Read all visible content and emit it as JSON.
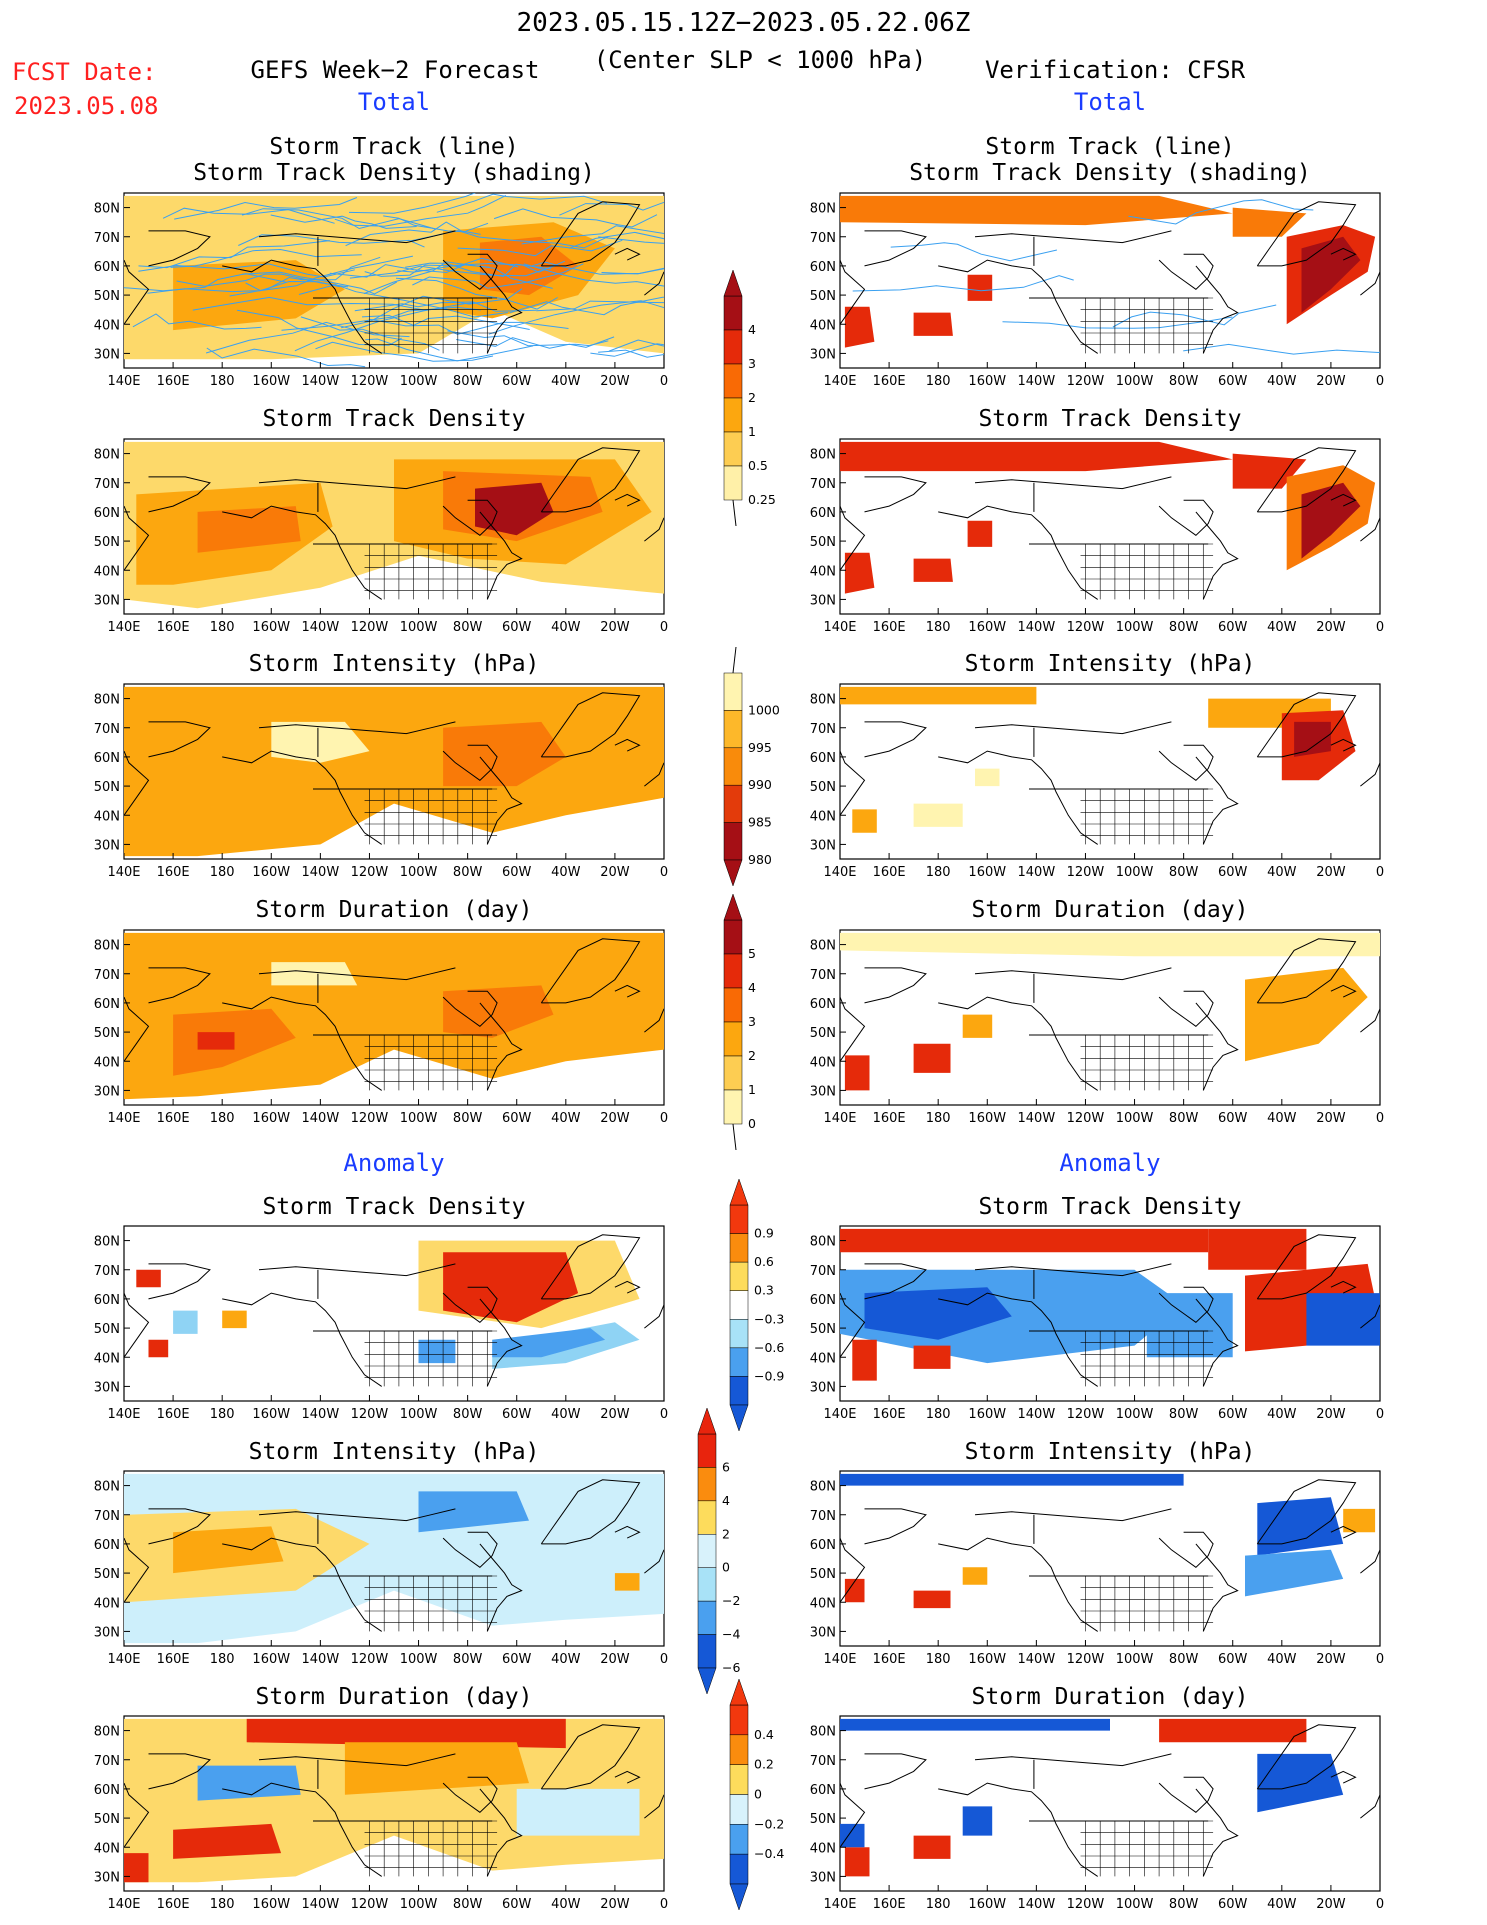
{
  "header": {
    "date_range": "2023.05.15.12Z−2023.05.22.06Z",
    "criterion": "(Center SLP < 1000 hPa)",
    "fcst_label": "FCST Date:",
    "fcst_date": "2023.05.08",
    "left_model": "GEFS Week−2 Forecast",
    "right_model": "Verification: CFSR",
    "total_left": "Total",
    "total_right": "Total",
    "anomaly_left": "Anomaly",
    "anomaly_right": "Anomaly"
  },
  "axes": {
    "x_ticks": [
      "140E",
      "160E",
      "180",
      "160W",
      "140W",
      "120W",
      "100W",
      "80W",
      "60W",
      "40W",
      "20W",
      "0"
    ],
    "y_ticks": [
      "80N",
      "70N",
      "60N",
      "50N",
      "40N",
      "30N"
    ]
  },
  "panels": {
    "p1": {
      "t1": "Storm Track (line)",
      "t2": "Storm Track Density (shading)"
    },
    "p2": {
      "t1": "Storm Track Density"
    },
    "p3": {
      "t1": "Storm Intensity (hPa)"
    },
    "p4": {
      "t1": "Storm Duration (day)"
    },
    "p5": {
      "t1": "Storm Track Density"
    },
    "p6": {
      "t1": "Storm Intensity (hPa)"
    },
    "p7": {
      "t1": "Storm Duration (day)"
    }
  },
  "colorbars": {
    "density_total": {
      "labels": [
        "4",
        "3",
        "2",
        "1",
        "0.5",
        "0.25"
      ],
      "colors": [
        "#a50f15",
        "#e52a0a",
        "#f96a05",
        "#fca70f",
        "#fdcd52",
        "#fff0a8"
      ]
    },
    "intensity_total": {
      "labels": [
        "1000",
        "995",
        "990",
        "985",
        "980"
      ],
      "colors": [
        "#fff4b0",
        "#fdb82a",
        "#f98b0b",
        "#e33b0b",
        "#a50f15"
      ]
    },
    "duration_total": {
      "labels": [
        "5",
        "4",
        "3",
        "2",
        "1",
        "0"
      ],
      "colors": [
        "#a50f15",
        "#e52a0a",
        "#f96a05",
        "#fca70f",
        "#fdcd52",
        "#fff4b0"
      ]
    },
    "density_anom": {
      "labels": [
        "0.9",
        "0.6",
        "0.3",
        "−0.3",
        "−0.6",
        "−0.9"
      ],
      "colors": [
        "#f2380e",
        "#fa8c0e",
        "#fddc5c",
        "#ffffff",
        "#a8e2f7",
        "#4aa0ef",
        "#1558d6"
      ]
    },
    "intensity_anom": {
      "labels": [
        "6",
        "4",
        "2",
        "0",
        "−2",
        "−4",
        "−6"
      ],
      "colors": [
        "#e8240d",
        "#fa8c0e",
        "#fddc5c",
        "#d8f2fb",
        "#a8e2f7",
        "#4aa0ef",
        "#1558d6"
      ]
    },
    "duration_anom": {
      "labels": [
        "0.4",
        "0.2",
        "0",
        "−0.2",
        "−0.4"
      ],
      "colors": [
        "#f2380e",
        "#fa8c0e",
        "#fddc5c",
        "#d8f2fb",
        "#4aa0ef",
        "#1558d6"
      ]
    }
  },
  "chart_data": [
    {
      "type": "heatmap",
      "panel": "left-1",
      "region": "140E–0, 25N–85N",
      "field": "forecast storm track density with track lines",
      "xlim": [
        "140E",
        "0"
      ],
      "ylim": [
        "25N",
        "85N"
      ],
      "max_region": "Hudson Bay / Labrador Sea",
      "max_class": "3–4"
    },
    {
      "type": "heatmap",
      "panel": "right-1",
      "field": "verification storm track density with track lines",
      "max_region": "North Atlantic / Arctic coast",
      "max_class": ">4"
    },
    {
      "type": "heatmap",
      "panel": "left-2",
      "field": "forecast storm track density",
      "max_region": "Hudson Bay",
      "max_class": ">4"
    },
    {
      "type": "heatmap",
      "panel": "right-2",
      "field": "verification storm track density",
      "max_region": "North Atlantic",
      "max_class": ">4"
    },
    {
      "type": "heatmap",
      "panel": "left-3",
      "field": "forecast storm intensity",
      "unit": "hPa",
      "typical_class": "990–995"
    },
    {
      "type": "heatmap",
      "panel": "right-3",
      "field": "verification storm intensity",
      "unit": "hPa",
      "min_region": "Labrador Sea",
      "min_class": "980–985"
    },
    {
      "type": "heatmap",
      "panel": "left-4",
      "field": "forecast storm duration",
      "unit": "day",
      "typical_class": "2–3"
    },
    {
      "type": "heatmap",
      "panel": "right-4",
      "field": "verification storm duration",
      "unit": "day",
      "max_region": "West Pacific",
      "max_class": "4–5"
    },
    {
      "type": "heatmap",
      "panel": "left-5",
      "field": "forecast storm track density anomaly",
      "positive_region": "Hudson Bay",
      "negative_region": "Central US"
    },
    {
      "type": "heatmap",
      "panel": "right-5",
      "field": "verification storm track density anomaly",
      "positive_region": "Arctic / Greenland",
      "negative_region": "North Pacific"
    },
    {
      "type": "heatmap",
      "panel": "left-6",
      "field": "forecast storm intensity anomaly",
      "unit": "hPa"
    },
    {
      "type": "heatmap",
      "panel": "right-6",
      "field": "verification storm intensity anomaly",
      "unit": "hPa"
    },
    {
      "type": "heatmap",
      "panel": "left-7",
      "field": "forecast storm duration anomaly",
      "unit": "day"
    },
    {
      "type": "heatmap",
      "panel": "right-7",
      "field": "verification storm duration anomaly",
      "unit": "day"
    }
  ]
}
